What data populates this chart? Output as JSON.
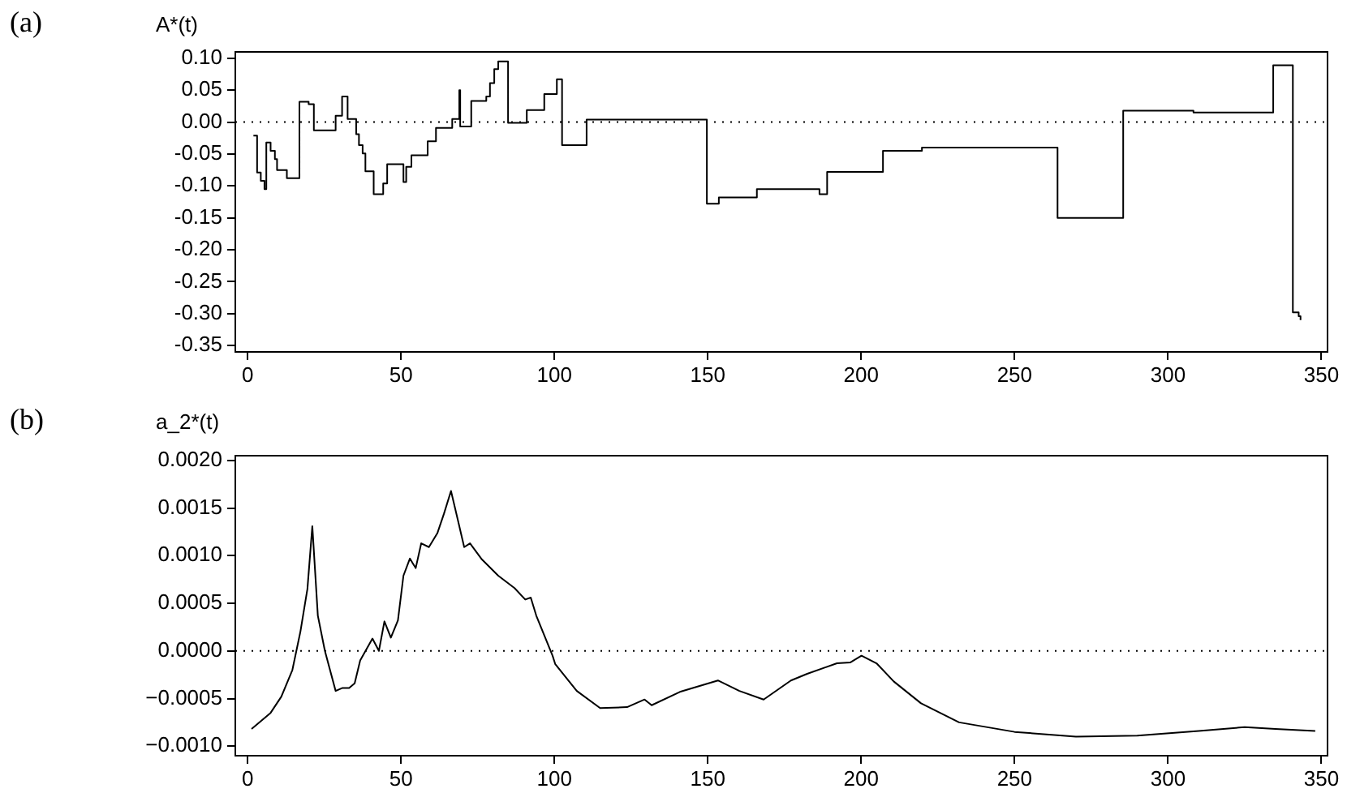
{
  "chart_data": [
    {
      "type": "step",
      "title": "(a)",
      "ylabel": "A*(t)",
      "x": [
        1.9,
        3.1,
        4.3,
        5.5,
        6.1,
        7.5,
        8.9,
        9.6,
        12.8,
        16.9,
        19.9,
        21.6,
        28.7,
        30.8,
        32.6,
        35.4,
        36.3,
        37.5,
        38.4,
        41.1,
        44.2,
        45.5,
        50.8,
        51.7,
        53.4,
        58.7,
        61.4,
        66.7,
        69.0,
        69.3,
        72.9,
        77.8,
        79.0,
        80.4,
        81.7,
        84.9,
        91.0,
        96.7,
        100.8,
        102.5,
        110.5,
        149.7,
        153.6,
        166.0,
        186.4,
        188.9,
        207.1,
        219.8,
        264.0,
        285.4,
        308.3,
        334.3,
        340.7,
        342.6,
        343.2
      ],
      "series": [
        {
          "color": "#000000",
          "values": [
            -0.021,
            -0.079,
            -0.092,
            -0.105,
            -0.032,
            -0.045,
            -0.058,
            -0.075,
            -0.088,
            0.032,
            0.028,
            -0.013,
            0.01,
            0.04,
            0.005,
            -0.019,
            -0.036,
            -0.049,
            -0.077,
            -0.113,
            -0.096,
            -0.066,
            -0.094,
            -0.07,
            -0.052,
            -0.03,
            -0.009,
            0.005,
            0.05,
            -0.007,
            0.033,
            0.04,
            0.061,
            0.083,
            0.095,
            -0.001,
            0.019,
            0.044,
            0.067,
            -0.036,
            0.004,
            -0.128,
            -0.118,
            -0.105,
            -0.113,
            -0.078,
            -0.045,
            -0.04,
            -0.15,
            0.018,
            0.015,
            0.089,
            -0.298,
            -0.304,
            -0.31
          ]
        }
      ],
      "xlim": [
        -4,
        352
      ],
      "xticks": [
        0,
        50,
        100,
        150,
        200,
        250,
        300,
        350
      ],
      "ylim": [
        -0.36,
        0.11
      ],
      "yticks": [
        {
          "value": 0.1,
          "label": "0.10"
        },
        {
          "value": 0.05,
          "label": "0.05"
        },
        {
          "value": 0,
          "label": "0.00"
        },
        {
          "value": -0.05,
          "label": "-0.05"
        },
        {
          "value": -0.1,
          "label": "-0.10"
        },
        {
          "value": -0.15,
          "label": "-0.15"
        },
        {
          "value": -0.2,
          "label": "-0.20"
        },
        {
          "value": -0.25,
          "label": "-0.25"
        },
        {
          "value": -0.3,
          "label": "-0.30"
        },
        {
          "value": -0.35,
          "label": "-0.35"
        }
      ],
      "ref_lines": [
        {
          "axis": "y",
          "value": 0,
          "line_style": "dotted",
          "color": "#000000"
        }
      ]
    },
    {
      "type": "line",
      "title": "(b)",
      "ylabel": "a_2*(t)",
      "x": [
        1.3,
        7.5,
        11.0,
        14.6,
        17.2,
        19.5,
        21.1,
        22.9,
        25.2,
        28.7,
        30.8,
        33.1,
        34.9,
        36.7,
        40.7,
        42.8,
        44.6,
        46.7,
        49.0,
        50.8,
        52.9,
        54.8,
        56.6,
        59.1,
        61.9,
        64.0,
        66.3,
        68.5,
        70.6,
        72.5,
        76.4,
        81.7,
        87.0,
        90.5,
        92.3,
        94.1,
        99.4,
        100.3,
        107.3,
        114.9,
        123.7,
        129.4,
        131.7,
        140.9,
        153.3,
        160.3,
        168.2,
        177.1,
        182.4,
        192.1,
        196.5,
        200.1,
        205.0,
        210.6,
        219.5,
        231.9,
        250,
        270,
        290,
        310,
        325,
        335,
        348
      ],
      "series": [
        {
          "color": "#000000",
          "values": [
            -0.00082,
            -0.00065,
            -0.00048,
            -0.0002,
            0.0002,
            0.00065,
            0.00131,
            0.00037,
            0,
            -0.00042,
            -0.00039,
            -0.00039,
            -0.00034,
            -0.0001,
            0.00013,
            0,
            0.00031,
            0.00014,
            0.00032,
            0.00079,
            0.00097,
            0.00087,
            0.00113,
            0.00109,
            0.00124,
            0.00144,
            0.00168,
            0.00138,
            0.00109,
            0.00113,
            0.00096,
            0.00079,
            0.00066,
            0.00054,
            0.00056,
            0.00037,
            -5e-05,
            -0.00014,
            -0.00042,
            -0.0006,
            -0.00059,
            -0.00051,
            -0.00057,
            -0.00043,
            -0.00031,
            -0.00042,
            -0.00051,
            -0.00031,
            -0.00024,
            -0.00013,
            -0.00012,
            -5e-05,
            -0.00013,
            -0.00032,
            -0.00055,
            -0.00075,
            -0.00085,
            -0.0009,
            -0.00089,
            -0.00084,
            -0.0008,
            -0.00082,
            -0.00084
          ]
        }
      ],
      "xlim": [
        -4,
        352
      ],
      "xticks": [
        0,
        50,
        100,
        150,
        200,
        250,
        300,
        350
      ],
      "ylim": [
        -0.0011,
        0.00205
      ],
      "yticks": [
        {
          "value": 0.002,
          "label": "0.0020"
        },
        {
          "value": 0.0015,
          "label": "0.0015"
        },
        {
          "value": 0.001,
          "label": "0.0010"
        },
        {
          "value": 0.0005,
          "label": "0.0005"
        },
        {
          "value": 0,
          "label": "0.0000"
        },
        {
          "value": -0.0005,
          "label": "−0.0005"
        },
        {
          "value": -0.001,
          "label": "−0.0010"
        }
      ],
      "ref_lines": [
        {
          "axis": "y",
          "value": 0,
          "line_style": "dotted",
          "color": "#000000"
        }
      ]
    }
  ]
}
